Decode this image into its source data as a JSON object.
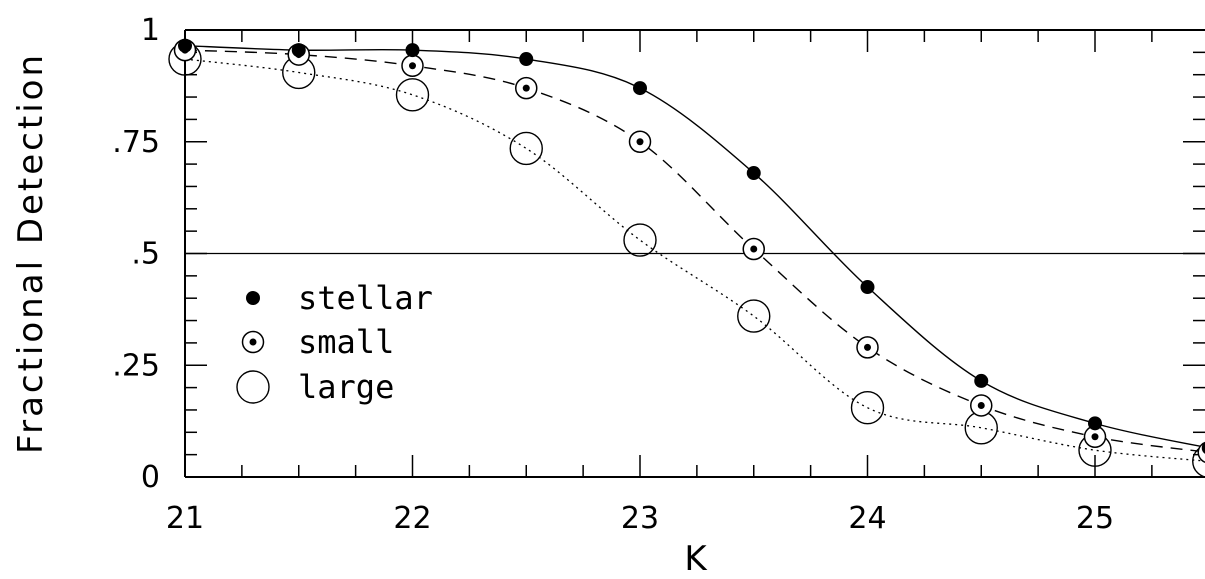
{
  "chart_data": {
    "type": "line",
    "xlabel": "K",
    "ylabel": "Fractional Detection",
    "xlim": [
      21,
      25.5
    ],
    "ylim": [
      0,
      1
    ],
    "xticks": [
      {
        "value": 21,
        "label": "21"
      },
      {
        "value": 22,
        "label": "22"
      },
      {
        "value": 23,
        "label": "23"
      },
      {
        "value": 24,
        "label": "24"
      },
      {
        "value": 25,
        "label": "25"
      }
    ],
    "yticks": [
      {
        "value": 0,
        "label": "0"
      },
      {
        "value": 0.25,
        "label": ".25"
      },
      {
        "value": 0.5,
        "label": ".5"
      },
      {
        "value": 0.75,
        "label": ".75"
      },
      {
        "value": 1,
        "label": "1"
      }
    ],
    "reference_line": {
      "y": 0.5
    },
    "x": [
      21,
      21.5,
      22,
      22.5,
      23,
      23.5,
      24,
      24.5,
      25,
      25.5
    ],
    "series": [
      {
        "name": "stellar",
        "marker": "filled-circle",
        "line": "solid",
        "values": [
          0.965,
          0.955,
          0.955,
          0.935,
          0.87,
          0.68,
          0.425,
          0.215,
          0.12,
          0.065
        ]
      },
      {
        "name": "small",
        "marker": "dotted-circle",
        "line": "dashed",
        "values": [
          0.955,
          0.945,
          0.92,
          0.87,
          0.75,
          0.51,
          0.29,
          0.16,
          0.09,
          0.055
        ]
      },
      {
        "name": "large",
        "marker": "large-open-circle",
        "line": "dotted",
        "values": [
          0.935,
          0.905,
          0.855,
          0.735,
          0.53,
          0.36,
          0.155,
          0.11,
          0.06,
          0.035
        ]
      }
    ],
    "legend": {
      "position": "lower-left"
    },
    "grid": false
  }
}
